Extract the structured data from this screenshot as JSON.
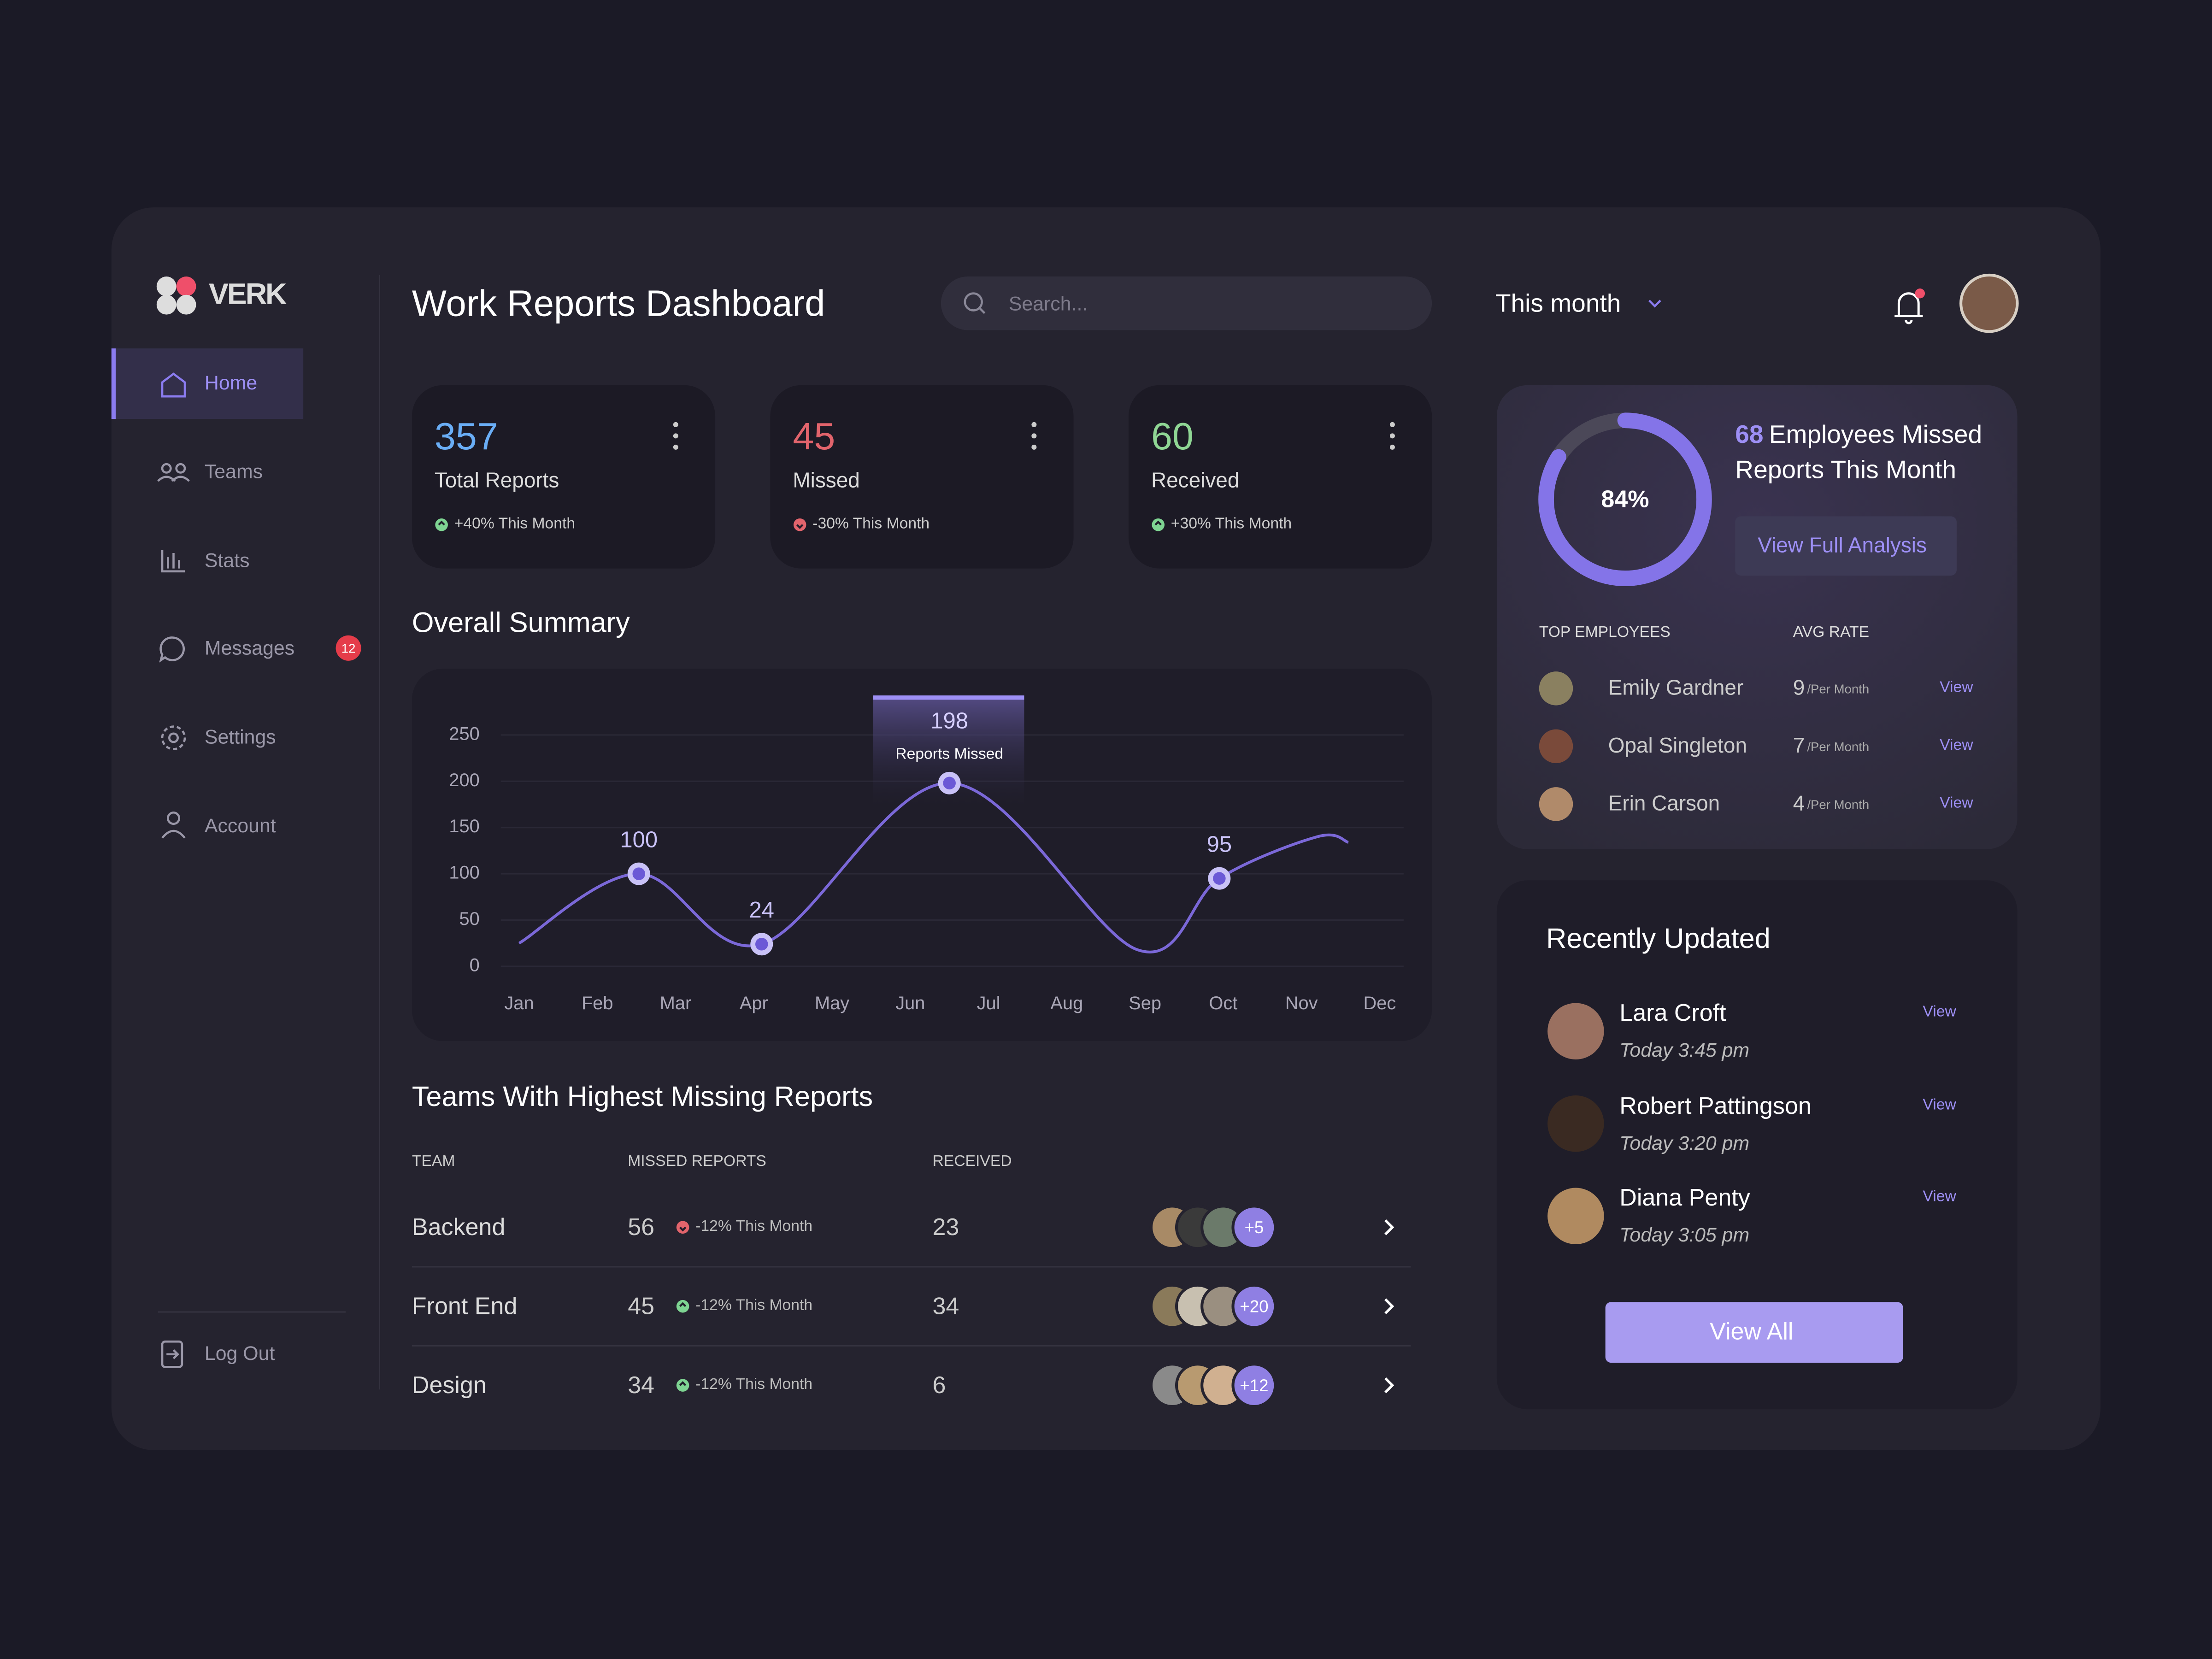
{
  "brand": "VERK",
  "nav": [
    {
      "label": "Home"
    },
    {
      "label": "Teams"
    },
    {
      "label": "Stats"
    },
    {
      "label": "Messages",
      "badge": 12
    },
    {
      "label": "Settings"
    },
    {
      "label": "Account"
    }
  ],
  "logout": "Log Out",
  "header": {
    "title": "Work Reports Dashboard",
    "search_placeholder": "Search...",
    "period": "This month"
  },
  "cards": [
    {
      "value": 357,
      "label": "Total Reports",
      "change": "+40% This Month",
      "trend": "up",
      "color": "#6aaef6"
    },
    {
      "value": 45,
      "label": "Missed",
      "change": "-30% This Month",
      "trend": "down",
      "color": "#e2646c"
    },
    {
      "value": 60,
      "label": "Received",
      "change": "+30% This Month",
      "trend": "up",
      "color": "#8fd694"
    }
  ],
  "summary_title": "Overall Summary",
  "chart_data": {
    "type": "line",
    "x": [
      0,
      1.53,
      3.1,
      5.5,
      7.9,
      8.95,
      10.2,
      10.6
    ],
    "xlim": [
      0,
      11
    ],
    "xticks": [
      {
        "value": 0,
        "label": "Jan"
      },
      {
        "value": 1,
        "label": "Feb"
      },
      {
        "value": 2,
        "label": "Mar"
      },
      {
        "value": 3,
        "label": "Apr"
      },
      {
        "value": 4,
        "label": "May"
      },
      {
        "value": 5,
        "label": "Jun"
      },
      {
        "value": 6,
        "label": "Jul"
      },
      {
        "value": 7,
        "label": "Aug"
      },
      {
        "value": 8,
        "label": "Sep"
      },
      {
        "value": 9,
        "label": "Oct"
      },
      {
        "value": 10,
        "label": "Nov"
      },
      {
        "value": 11,
        "label": "Dec"
      }
    ],
    "ylim": [
      0,
      250
    ],
    "yticks": [
      0,
      50,
      100,
      150,
      200,
      250
    ],
    "grid": true,
    "series": [
      {
        "name": "Reports Missed",
        "color": "#7b68d8",
        "values": [
          25,
          100,
          24,
          198,
          18,
          95,
          140,
          134
        ],
        "value_labels": [
          null,
          "100",
          "24",
          "198",
          null,
          "95",
          null,
          null
        ]
      }
    ]
  },
  "teams": {
    "title": "Teams With Highest Missing Reports",
    "columns": [
      "TEAM",
      "MISSED REPORTS",
      "RECEIVED"
    ],
    "rows": [
      {
        "team": "Backend",
        "missed": 56,
        "change": "-12% This Month",
        "trend": "down",
        "received": 23,
        "more": "+5"
      },
      {
        "team": "Front End",
        "missed": 45,
        "change": "-12% This Month",
        "trend": "up",
        "received": 34,
        "more": "+20"
      },
      {
        "team": "Design",
        "missed": 34,
        "change": "-12% This Month",
        "trend": "up",
        "received": 6,
        "more": "+12"
      }
    ]
  },
  "analysis": {
    "percent": 84,
    "percent_label": "84%",
    "count": 68,
    "text": "Employees Missed",
    "text2": "Reports This Month",
    "button": "View Full Analysis",
    "columns": [
      "TOP EMPLOYEES",
      "AVG RATE"
    ],
    "employees": [
      {
        "name": "Emily Gardner",
        "rate": 9,
        "unit": "/Per Month",
        "action": "View"
      },
      {
        "name": "Opal Singleton",
        "rate": 7,
        "unit": "/Per Month",
        "action": "View"
      },
      {
        "name": "Erin Carson",
        "rate": 4,
        "unit": "/Per Month",
        "action": "View"
      }
    ]
  },
  "recent": {
    "title": "Recently Updated",
    "items": [
      {
        "name": "Lara Croft",
        "time": "Today 3:45 pm",
        "action": "View"
      },
      {
        "name": "Robert Pattingson",
        "time": "Today 3:20 pm",
        "action": "View"
      },
      {
        "name": "Diana Penty",
        "time": "Today 3:05 pm",
        "action": "View"
      }
    ],
    "button": "View All"
  }
}
